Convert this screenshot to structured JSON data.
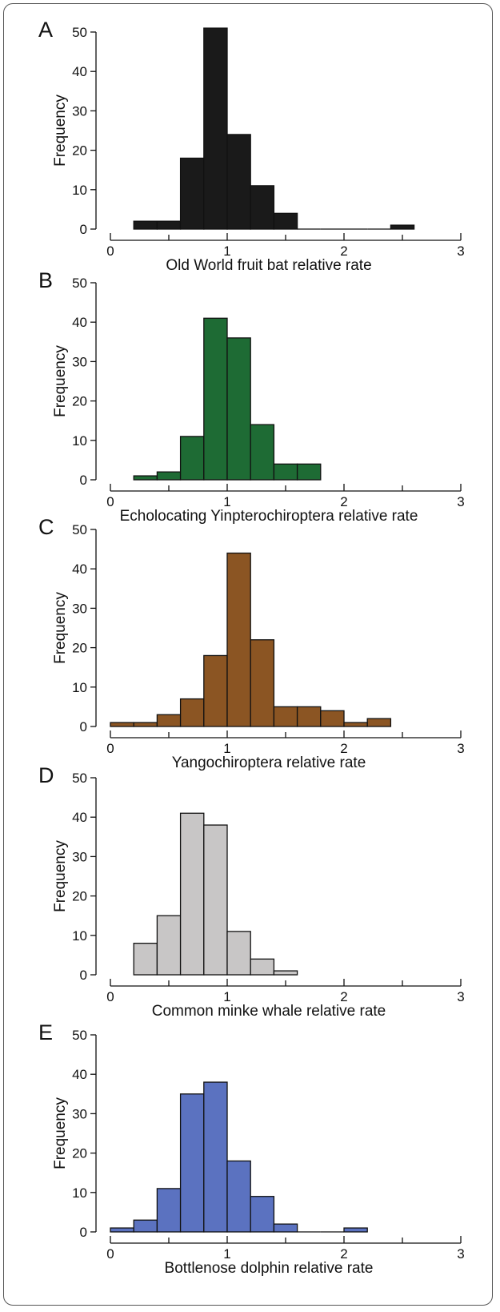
{
  "chart_data": [
    {
      "type": "bar",
      "panel_label": "A",
      "xlabel": "Old World fruit bat relative rate",
      "ylabel": "Frequency",
      "bin_edges": [
        0.2,
        0.4,
        0.6,
        0.8,
        1.0,
        1.2,
        1.4,
        1.6,
        1.8,
        2.0,
        2.2,
        2.4,
        2.6
      ],
      "values": [
        2,
        2,
        18,
        51,
        24,
        11,
        4,
        0,
        0,
        0,
        0,
        1
      ],
      "xlim": [
        0,
        3
      ],
      "ylim": [
        0,
        50
      ],
      "x_ticks": [
        0,
        1,
        2,
        3
      ],
      "y_ticks": [
        0,
        10,
        20,
        30,
        40,
        50
      ],
      "color": "#1a1a1a"
    },
    {
      "type": "bar",
      "panel_label": "B",
      "xlabel": "Echolocating Yinpterochiroptera relative rate",
      "ylabel": "Frequency",
      "bin_edges": [
        0.2,
        0.4,
        0.6,
        0.8,
        1.0,
        1.2,
        1.4,
        1.6,
        1.8
      ],
      "values": [
        1,
        2,
        11,
        41,
        36,
        14,
        4,
        4
      ],
      "xlim": [
        0,
        3
      ],
      "ylim": [
        0,
        50
      ],
      "x_ticks": [
        0,
        1,
        2,
        3
      ],
      "y_ticks": [
        0,
        10,
        20,
        30,
        40,
        50
      ],
      "color": "#1e6b34"
    },
    {
      "type": "bar",
      "panel_label": "C",
      "xlabel": "Yangochiroptera relative rate",
      "ylabel": "Frequency",
      "bin_edges": [
        0.0,
        0.2,
        0.4,
        0.6,
        0.8,
        1.0,
        1.2,
        1.4,
        1.6,
        1.8,
        2.0,
        2.2,
        2.4
      ],
      "values": [
        1,
        1,
        3,
        7,
        18,
        44,
        22,
        5,
        5,
        4,
        1,
        2
      ],
      "xlim": [
        0,
        3
      ],
      "ylim": [
        0,
        50
      ],
      "x_ticks": [
        0,
        1,
        2,
        3
      ],
      "y_ticks": [
        0,
        10,
        20,
        30,
        40,
        50
      ],
      "color": "#8b5523"
    },
    {
      "type": "bar",
      "panel_label": "D",
      "xlabel": "Common minke whale relative rate",
      "ylabel": "Frequency",
      "bin_edges": [
        0.2,
        0.4,
        0.6,
        0.8,
        1.0,
        1.2,
        1.4,
        1.6
      ],
      "values": [
        8,
        15,
        41,
        38,
        11,
        4,
        1
      ],
      "xlim": [
        0,
        3
      ],
      "ylim": [
        0,
        50
      ],
      "x_ticks": [
        0,
        1,
        2,
        3
      ],
      "y_ticks": [
        0,
        10,
        20,
        30,
        40,
        50
      ],
      "color": "#c8c6c6"
    },
    {
      "type": "bar",
      "panel_label": "E",
      "xlabel": "Bottlenose dolphin relative rate",
      "ylabel": "Frequency",
      "bin_edges": [
        0.0,
        0.2,
        0.4,
        0.6,
        0.8,
        1.0,
        1.2,
        1.4,
        1.6,
        1.8,
        2.0,
        2.2
      ],
      "values": [
        1,
        3,
        11,
        35,
        38,
        18,
        9,
        2,
        0,
        0,
        1
      ],
      "xlim": [
        0,
        3
      ],
      "ylim": [
        0,
        50
      ],
      "x_ticks": [
        0,
        1,
        2,
        3
      ],
      "y_ticks": [
        0,
        10,
        20,
        30,
        40,
        50
      ],
      "color": "#5b72c0"
    }
  ]
}
